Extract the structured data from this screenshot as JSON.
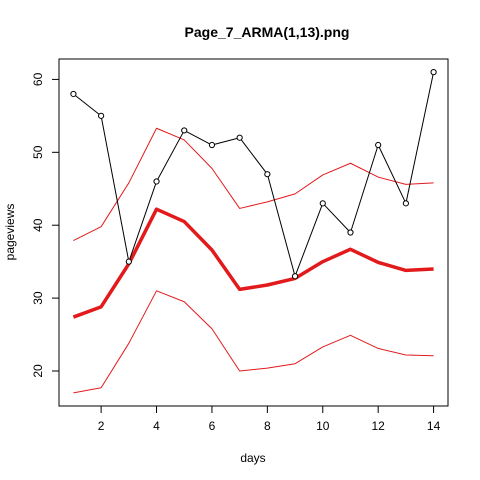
{
  "chart_data": {
    "type": "line",
    "title": "Page_7_ARMA(1,13).png",
    "xlabel": "days",
    "ylabel": "pageviews",
    "xlim": [
      0.48,
      14.52
    ],
    "ylim": [
      15.2,
      62.8
    ],
    "x_ticks": [
      2,
      4,
      6,
      8,
      10,
      12,
      14
    ],
    "y_ticks": [
      20,
      30,
      40,
      50,
      60
    ],
    "grid": false,
    "series": [
      {
        "name": "",
        "role": "observed",
        "style": "black line with open circles",
        "color": "#000000",
        "x": [
          1,
          2,
          3,
          4,
          5,
          6,
          7,
          8,
          9,
          10,
          11,
          12,
          13,
          14
        ],
        "values": [
          58,
          55,
          35,
          46,
          53,
          51,
          52,
          47,
          33,
          43,
          39,
          51,
          43,
          61
        ]
      },
      {
        "name": "",
        "role": "forecast",
        "style": "thick red line",
        "color": "#e31a1c",
        "x": [
          1,
          2,
          3,
          4,
          5,
          6,
          7,
          8,
          9,
          10,
          11,
          12,
          13,
          14
        ],
        "values": [
          27.4,
          28.8,
          34.7,
          42.2,
          40.5,
          36.6,
          31.2,
          31.8,
          32.7,
          35.0,
          36.7,
          34.9,
          33.8,
          34.0
        ]
      },
      {
        "name": "",
        "role": "upper-bound",
        "style": "thin red line",
        "color": "#e31a1c",
        "x": [
          1,
          2,
          3,
          4,
          5,
          6,
          7,
          8,
          9,
          10,
          11,
          12,
          13,
          14
        ],
        "values": [
          37.9,
          39.8,
          45.8,
          53.3,
          51.7,
          47.8,
          42.3,
          43.2,
          44.3,
          46.9,
          48.5,
          46.6,
          45.6,
          45.8
        ]
      },
      {
        "name": "",
        "role": "lower-bound",
        "style": "thin red line",
        "color": "#e31a1c",
        "x": [
          1,
          2,
          3,
          4,
          5,
          6,
          7,
          8,
          9,
          10,
          11,
          12,
          13,
          14
        ],
        "values": [
          17.0,
          17.7,
          23.8,
          31.0,
          29.5,
          25.8,
          20.0,
          20.4,
          21.0,
          23.3,
          24.9,
          23.1,
          22.2,
          22.1
        ]
      }
    ]
  }
}
